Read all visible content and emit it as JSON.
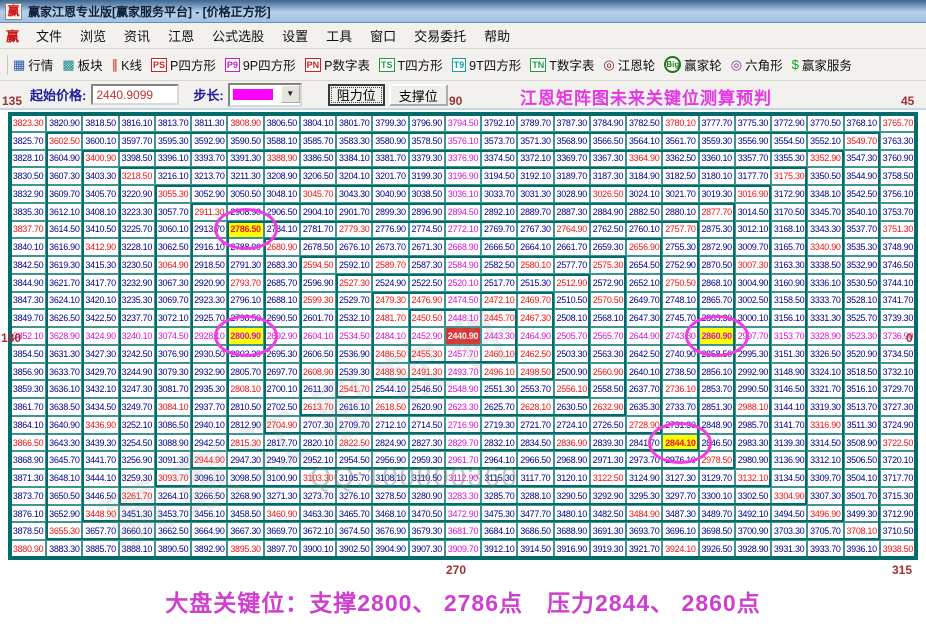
{
  "window": {
    "title": "赢家江恩专业版[赢家服务平台] - [价格正方形]",
    "logo": "赢"
  },
  "menu": {
    "items": [
      "文件",
      "浏览",
      "资讯",
      "江恩",
      "公式选股",
      "设置",
      "工具",
      "窗口",
      "交易委托",
      "帮助"
    ]
  },
  "toolbar": {
    "items": [
      {
        "name": "quotes",
        "label": "行情",
        "glyph": "▦",
        "color": "#2b56b0",
        "style": "plain"
      },
      {
        "name": "sectors",
        "label": "板块",
        "glyph": "▩",
        "color": "#1c8a8a",
        "style": "plain"
      },
      {
        "name": "kline",
        "label": "K线",
        "glyph": "∥",
        "color": "#cc2222",
        "style": "plain"
      },
      {
        "name": "p-square",
        "label": "P四方形",
        "glyph": "PS",
        "color": "#cc2222",
        "style": "badge"
      },
      {
        "name": "9p-square",
        "label": "9P四方形",
        "glyph": "P9",
        "color": "#c020c0",
        "style": "badge"
      },
      {
        "name": "p-number-table",
        "label": "P数字表",
        "glyph": "PN",
        "color": "#cc2222",
        "style": "badge"
      },
      {
        "name": "t-square",
        "label": "T四方形",
        "glyph": "TS",
        "color": "#1f9e3f",
        "style": "badge"
      },
      {
        "name": "9t-square",
        "label": "9T四方形",
        "glyph": "T9",
        "color": "#14a0a0",
        "style": "badge"
      },
      {
        "name": "t-number-table",
        "label": "T数字表",
        "glyph": "TN",
        "color": "#1f9e3f",
        "style": "badge"
      },
      {
        "name": "gann-wheel",
        "label": "江恩轮",
        "glyph": "◎",
        "color": "#8b1a1a",
        "style": "plain"
      },
      {
        "name": "winner-wheel",
        "label": "赢家轮",
        "glyph": "Big",
        "color": "#1a7a1a",
        "style": "circ"
      },
      {
        "name": "hexagon",
        "label": "六角形",
        "glyph": "◎",
        "color": "#7a2a9a",
        "style": "plain"
      },
      {
        "name": "winner-service",
        "label": "赢家服务",
        "glyph": "$",
        "color": "#17a017",
        "style": "plain"
      }
    ]
  },
  "controls": {
    "start_price_label": "起始价格:",
    "start_price_value": "2440.9099",
    "step_label": "步长:",
    "step_swatch_color": "#ff00ff",
    "resistance_button": "阻力位",
    "support_button": "支撑位",
    "banner": "江恩矩阵图未来关键位测算预判"
  },
  "angles": {
    "deg135": "135",
    "deg90": "90",
    "deg45": "45",
    "deg180": "180",
    "deg0": "0",
    "deg270": "270",
    "deg315": "315"
  },
  "watermarks": {
    "qq": "QQ:100800360",
    "brand": "赢家江恩软件"
  },
  "footer": {
    "text": "大盘关键位：支撑2800、 2786点　压力2844、 2860点"
  },
  "colors": {
    "navy": "#00008b",
    "red": "#ee1414",
    "magenta": "#d414d4",
    "yellow": "#ffff00",
    "center_bg": "#e03232",
    "grid_line": "#3f9494",
    "ring_line": "#056a6a",
    "angle_label": "#9a3333",
    "banner": "#e23ae2",
    "footer": "#cf3fcf",
    "circle": "#f23ae6"
  },
  "grid": {
    "values": [
      [
        3823.3,
        3820.9,
        3818.5,
        3816.1,
        3813.7,
        3811.3,
        3808.9,
        3806.5,
        3804.1,
        3801.7,
        3799.3,
        3796.9,
        3794.5,
        3792.1,
        3789.7,
        3787.3,
        3784.9,
        3782.5,
        3780.1,
        3777.7,
        3775.3,
        3772.9,
        3770.5,
        3768.1,
        3765.7
      ],
      [
        3825.7,
        3602.5,
        3600.1,
        3597.7,
        3595.3,
        3592.9,
        3590.5,
        3588.1,
        3585.7,
        3583.3,
        3580.9,
        3578.5,
        3576.1,
        3573.7,
        3571.3,
        3568.9,
        3566.5,
        3564.1,
        3561.7,
        3559.3,
        3556.9,
        3554.5,
        3552.1,
        3549.7,
        3763.3
      ],
      [
        3828.1,
        3604.9,
        3400.9,
        3398.5,
        3396.1,
        3393.7,
        3391.3,
        3388.9,
        3386.5,
        3384.1,
        3381.7,
        3379.3,
        3376.9,
        3374.5,
        3372.1,
        3369.7,
        3367.3,
        3364.9,
        3362.5,
        3360.1,
        3357.7,
        3355.3,
        3352.9,
        3547.3,
        3760.9
      ],
      [
        3830.5,
        3607.3,
        3403.3,
        3218.5,
        3216.1,
        3213.7,
        3211.3,
        3208.9,
        3206.5,
        3204.1,
        3201.7,
        3199.3,
        3196.9,
        3194.5,
        3192.1,
        3189.7,
        3187.3,
        3184.9,
        3182.5,
        3180.1,
        3177.7,
        3175.3,
        3350.5,
        3544.9,
        3758.5
      ],
      [
        3832.9,
        3609.7,
        3405.7,
        3220.9,
        3055.3,
        3052.9,
        3050.5,
        3048.1,
        3045.7,
        3043.3,
        3040.9,
        3038.5,
        3036.1,
        3033.7,
        3031.3,
        3028.9,
        3026.5,
        3024.1,
        3021.7,
        3019.3,
        3016.9,
        3172.9,
        3348.1,
        3542.5,
        3756.1
      ],
      [
        3835.3,
        3612.1,
        3408.1,
        3223.3,
        3057.7,
        2911.3,
        2908.9,
        2906.5,
        2904.1,
        2901.7,
        2899.3,
        2896.9,
        2894.5,
        2892.1,
        2889.7,
        2887.3,
        2884.9,
        2882.5,
        2880.1,
        2877.7,
        3014.5,
        3170.5,
        3345.7,
        3540.1,
        3753.7
      ],
      [
        3837.7,
        3614.5,
        3410.5,
        3225.7,
        3060.1,
        2913.7,
        2786.5,
        2784.1,
        2781.7,
        2779.3,
        2776.9,
        2774.5,
        2772.1,
        2769.7,
        2767.3,
        2764.9,
        2762.5,
        2760.1,
        2757.7,
        2875.3,
        3012.1,
        3168.1,
        3343.3,
        3537.7,
        3751.3
      ],
      [
        3840.1,
        3616.9,
        3412.9,
        3228.1,
        3062.5,
        2916.1,
        2788.9,
        2680.9,
        2678.5,
        2676.1,
        2673.7,
        2671.3,
        2668.9,
        2666.5,
        2664.1,
        2661.7,
        2659.3,
        2656.9,
        2755.3,
        2872.9,
        3009.7,
        3165.7,
        3340.9,
        3535.3,
        3748.9
      ],
      [
        3842.5,
        3619.3,
        3415.3,
        3230.5,
        3064.9,
        2918.5,
        2791.3,
        2683.3,
        2594.5,
        2592.1,
        2589.7,
        2587.3,
        2584.9,
        2582.5,
        2580.1,
        2577.7,
        2575.3,
        2654.5,
        2752.9,
        2870.5,
        3007.3,
        3163.3,
        3338.5,
        3532.9,
        3746.5
      ],
      [
        3844.9,
        3621.7,
        3417.7,
        3232.9,
        3067.3,
        2920.9,
        2793.7,
        2685.7,
        2596.9,
        2527.3,
        2524.9,
        2522.5,
        2520.1,
        2517.7,
        2515.3,
        2512.9,
        2572.9,
        2652.1,
        2750.5,
        2868.1,
        3004.9,
        3160.9,
        3336.1,
        3530.5,
        3744.1
      ],
      [
        3847.3,
        3624.1,
        3420.1,
        3235.3,
        3069.7,
        2923.3,
        2796.1,
        2688.1,
        2599.3,
        2529.7,
        2479.3,
        2476.9,
        2474.5,
        2472.1,
        2469.7,
        2510.5,
        2570.5,
        2649.7,
        2748.1,
        2865.7,
        3002.5,
        3158.5,
        3333.7,
        3528.1,
        3741.7
      ],
      [
        3849.7,
        3626.5,
        3422.5,
        3237.7,
        3072.1,
        2925.7,
        2798.5,
        2690.5,
        2601.7,
        2532.1,
        2481.7,
        2450.5,
        2448.1,
        2445.7,
        2467.3,
        2508.1,
        2568.1,
        2647.3,
        2745.7,
        2863.3,
        3000.1,
        3156.1,
        3331.3,
        3525.7,
        3739.3
      ],
      [
        3852.1,
        3628.9,
        3424.9,
        3240.1,
        3074.5,
        2928.1,
        2800.9,
        2692.9,
        2604.1,
        2534.5,
        2484.1,
        2452.9,
        2440.9,
        2443.3,
        2464.9,
        2505.7,
        2565.7,
        2644.9,
        2743.3,
        2860.9,
        2997.7,
        3153.7,
        3328.9,
        3523.3,
        3736.9
      ],
      [
        3854.5,
        3631.3,
        3427.3,
        3242.5,
        3076.9,
        2930.5,
        2803.3,
        2695.3,
        2606.5,
        2536.9,
        2486.5,
        2455.3,
        2457.7,
        2460.1,
        2462.5,
        2503.3,
        2563.3,
        2642.5,
        2740.9,
        2858.5,
        2995.3,
        3151.3,
        3326.5,
        3520.9,
        3734.5
      ],
      [
        3856.9,
        3633.7,
        3429.7,
        3244.9,
        3079.3,
        2932.9,
        2805.7,
        2697.7,
        2608.9,
        2539.3,
        2488.9,
        2491.3,
        2493.7,
        2496.1,
        2498.5,
        2500.9,
        2560.9,
        2640.1,
        2738.5,
        2856.1,
        2992.9,
        3148.9,
        3324.1,
        3518.5,
        3732.1
      ],
      [
        3859.3,
        3636.1,
        3432.1,
        3247.3,
        3081.7,
        2935.3,
        2808.1,
        2700.1,
        2611.3,
        2541.7,
        2544.1,
        2546.5,
        2548.9,
        2551.3,
        2553.7,
        2556.1,
        2558.5,
        2637.7,
        2736.1,
        2853.7,
        2990.5,
        3146.5,
        3321.7,
        3516.1,
        3729.7
      ],
      [
        3861.7,
        3638.5,
        3434.5,
        3249.7,
        3084.1,
        2937.7,
        2810.5,
        2702.5,
        2613.7,
        2616.1,
        2618.5,
        2620.9,
        2623.3,
        2625.7,
        2628.1,
        2630.5,
        2632.9,
        2635.3,
        2733.7,
        2851.3,
        2988.1,
        3144.1,
        3319.3,
        3513.7,
        3727.3
      ],
      [
        3864.1,
        3640.9,
        3436.9,
        3252.1,
        3086.5,
        2940.1,
        2812.9,
        2704.9,
        2707.3,
        2709.7,
        2712.1,
        2714.5,
        2716.9,
        2719.3,
        2721.7,
        2724.1,
        2726.5,
        2728.9,
        2731.3,
        2848.9,
        2985.7,
        3141.7,
        3316.9,
        3511.3,
        3724.9
      ],
      [
        3866.5,
        3643.3,
        3439.3,
        3254.5,
        3088.9,
        2942.5,
        2815.3,
        2817.7,
        2820.1,
        2822.5,
        2824.9,
        2827.3,
        2829.7,
        2832.1,
        2834.5,
        2836.9,
        2839.3,
        2841.7,
        2844.1,
        2846.5,
        2983.3,
        3139.3,
        3314.5,
        3508.9,
        3722.5
      ],
      [
        3868.9,
        3645.7,
        3441.7,
        3256.9,
        3091.3,
        2944.9,
        2947.3,
        2949.7,
        2952.1,
        2954.5,
        2956.9,
        2959.3,
        2961.7,
        2964.1,
        2966.5,
        2968.9,
        2971.3,
        2973.7,
        2976.1,
        2978.5,
        2980.9,
        3136.9,
        3312.1,
        3506.5,
        3720.1
      ],
      [
        3871.3,
        3648.1,
        3444.1,
        3259.3,
        3093.7,
        3096.1,
        3098.5,
        3100.9,
        3103.3,
        3105.7,
        3108.1,
        3110.5,
        3112.9,
        3115.3,
        3117.7,
        3120.1,
        3122.5,
        3124.9,
        3127.3,
        3129.7,
        3132.1,
        3134.5,
        3309.7,
        3504.1,
        3717.7
      ],
      [
        3873.7,
        3650.5,
        3446.5,
        3261.7,
        3264.1,
        3266.5,
        3268.9,
        3271.3,
        3273.7,
        3276.1,
        3278.5,
        3280.9,
        3283.3,
        3285.7,
        3288.1,
        3290.5,
        3292.9,
        3295.3,
        3297.7,
        3300.1,
        3302.5,
        3304.9,
        3307.3,
        3501.7,
        3715.3
      ],
      [
        3876.1,
        3652.9,
        3448.9,
        3451.3,
        3453.7,
        3456.1,
        3458.5,
        3460.9,
        3463.3,
        3465.7,
        3468.1,
        3470.5,
        3472.9,
        3475.3,
        3477.7,
        3480.1,
        3482.5,
        3484.9,
        3487.3,
        3489.7,
        3492.1,
        3494.5,
        3496.9,
        3499.3,
        3712.9
      ],
      [
        3878.5,
        3655.3,
        3657.7,
        3660.1,
        3662.5,
        3664.9,
        3667.3,
        3669.7,
        3672.1,
        3674.5,
        3676.9,
        3679.3,
        3681.7,
        3684.1,
        3686.5,
        3688.9,
        3691.3,
        3693.7,
        3696.1,
        3698.5,
        3700.9,
        3703.3,
        3705.7,
        3708.1,
        3710.5
      ],
      [
        3880.9,
        3883.3,
        3885.7,
        3888.1,
        3890.5,
        3892.9,
        3895.3,
        3897.7,
        3900.1,
        3902.5,
        3904.9,
        3907.3,
        3909.7,
        3912.1,
        3914.5,
        3916.9,
        3919.3,
        3921.7,
        3924.1,
        3926.5,
        3928.9,
        3931.3,
        3933.7,
        3936.1,
        3938.5
      ]
    ],
    "colors": [
      "rnnnnnrnnnnnmnnnnnrnnnnnr",
      "nrnnnnnnnnnnmnnnnnnnnnnrn",
      "nnrnnnnrnnnnmnnnnrnnnnrnn",
      "nnnrnnnnnnnnmnnnnnnnnrnnn",
      "nnnnrnnnrnnnmnnnrnnnrnnnn",
      "nnnnnrnnnnnnmnnnnnnrnnnnn",
      "rnnnnnRnnrnnmnnrnnrnnnnnr",
      "nnrnnnnrnnnnmnnnnrnnnnrnn",
      "nnnnrnnnrnrnmnrnrnnnrnnnn",
      "nnnnnnrnnrnnmnnrnnrnnnnnn",
      "nnnnnnnnrnrrmrrnrnnnnnnnn",
      "nnnnnnnnnnrrmrrnnnnnnnnnn",
      "mmmmmmMmmmmmcmmmmmmMmmmmm",
      "nnnnnnnnnnrrmrrnnnnnnnnnn",
      "nnnnnnnnrnrrmrrnrnnnnnnnn",
      "nnnnnnrnnrnnmnnrnnrnnnnnn",
      "nnnnrnnnrnrnmnrnrnnnrnnnn",
      "nnrnnnnrnnnnmnnnnrnnnnrnn",
      "rnnnnnrnnrnnmnnrnnRnnnnnr",
      "nnnnnrnnnnnnmnnnnnnrnnnnn",
      "nnnnrnnnrnnnmnnnrnnnrnnnn",
      "nnnrnnnnnnnnmnnnnnnnnrnnn",
      "nnrnnnnrnnnnmnnnnrnnnnrnn",
      "nrnnnnnnnnnnmnnnnnnnnnnrn",
      "rnnnnnrnnnnnmnnnnnrnnnnnr"
    ],
    "circled_cells": [
      {
        "row": 7,
        "col": 7,
        "value": "2786.50"
      },
      {
        "row": 13,
        "col": 7,
        "value": "2800.90"
      },
      {
        "row": 13,
        "col": 20,
        "value": "2860.90"
      },
      {
        "row": 19,
        "col": 19,
        "value": "2844.10"
      }
    ],
    "rings": 12
  }
}
